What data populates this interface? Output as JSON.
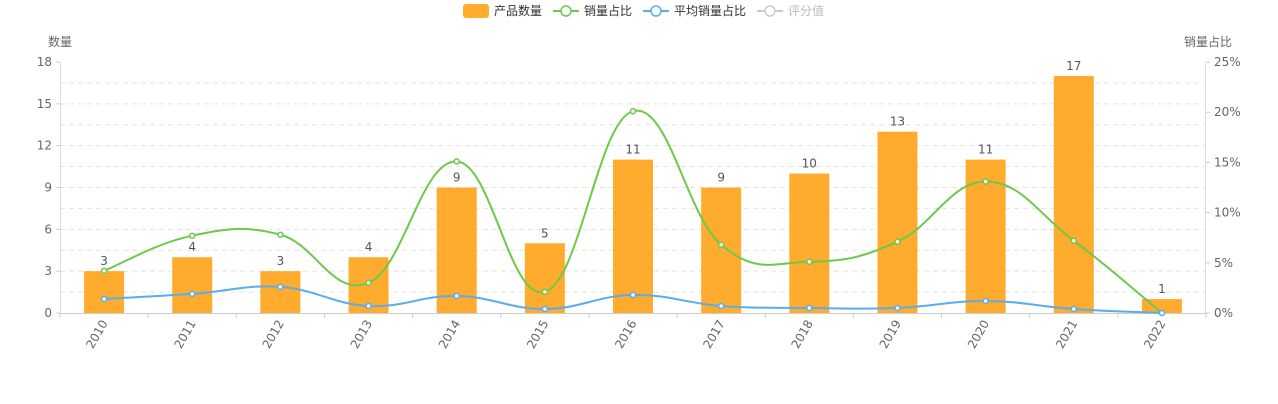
{
  "chart_data": {
    "type": "bar",
    "categories": [
      "2010",
      "2011",
      "2012",
      "2013",
      "2014",
      "2015",
      "2016",
      "2017",
      "2018",
      "2019",
      "2020",
      "2021",
      "2022"
    ],
    "legend": {
      "position": "top-center",
      "items": [
        {
          "name": "产品数量",
          "kind": "bar",
          "color": "#ffab2d",
          "active": true
        },
        {
          "name": "销量占比",
          "kind": "line",
          "color": "#6ec84a",
          "active": true
        },
        {
          "name": "平均销量占比",
          "kind": "line",
          "color": "#5aacec",
          "active": true
        },
        {
          "name": "评分值",
          "kind": "line",
          "color": "#cccccc",
          "active": false
        }
      ]
    },
    "left_axis": {
      "label": "数量",
      "min": 0,
      "max": 18,
      "ticks": [
        "0",
        "3",
        "6",
        "9",
        "12",
        "15",
        "18"
      ]
    },
    "right_axis": {
      "label": "销量占比",
      "min": 0,
      "max": 25,
      "ticks": [
        "0%",
        "5%",
        "10%",
        "15%",
        "20%",
        "25%"
      ]
    },
    "grid": true,
    "series": [
      {
        "name": "产品数量",
        "type": "bar",
        "axis": "left",
        "color": "#ffab2d",
        "values": [
          3,
          4,
          3,
          4,
          9,
          5,
          11,
          9,
          10,
          13,
          11,
          17,
          1
        ],
        "data_labels": [
          "3",
          "4",
          "3",
          "4",
          "9",
          "5",
          "11",
          "9",
          "10",
          "13",
          "11",
          "17",
          "1"
        ]
      },
      {
        "name": "销量占比",
        "type": "line",
        "axis": "right",
        "color": "#6ec84a",
        "values": [
          4.2,
          7.7,
          7.8,
          3.0,
          15.1,
          2.1,
          20.1,
          6.8,
          5.1,
          7.1,
          13.1,
          7.2,
          0.0
        ]
      },
      {
        "name": "平均销量占比",
        "type": "line",
        "axis": "right",
        "color": "#5aacec",
        "values": [
          1.4,
          1.9,
          2.6,
          0.7,
          1.7,
          0.4,
          1.8,
          0.7,
          0.5,
          0.5,
          1.2,
          0.4,
          0.0
        ]
      }
    ]
  }
}
